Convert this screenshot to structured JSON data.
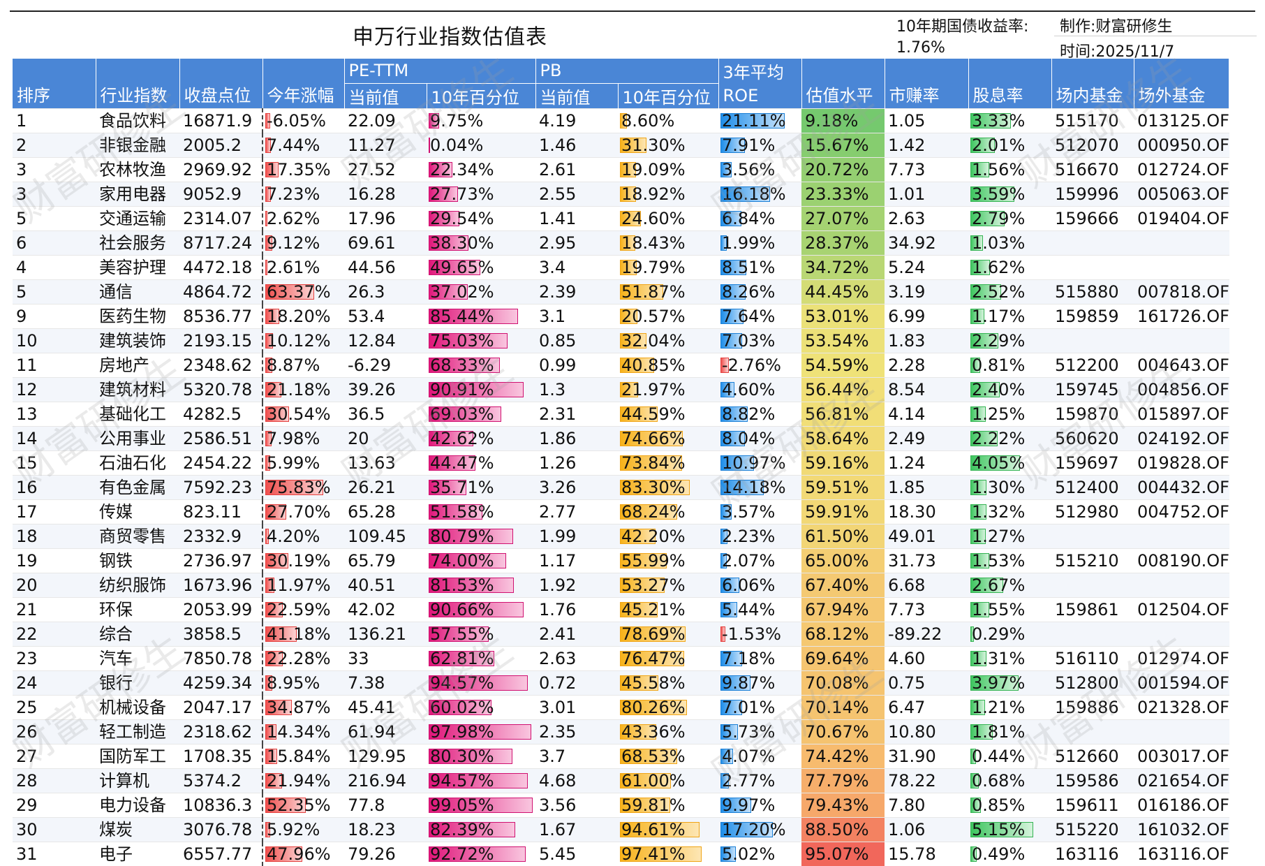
{
  "title": "申万行业指数估值表",
  "bond_label": "10年期国债收益率:",
  "bond_value": "1.76%",
  "author": "制作:财富研修生",
  "date": "时间:2025/11/7",
  "watermark": "财富研修生",
  "headers": {
    "rank": "排序",
    "industry": "行业指数",
    "close": "收盘点位",
    "ytd": "今年涨幅",
    "pe_group": "PE-TTM",
    "pe_cur": "当前值",
    "pe_pct": "10年百分位",
    "pb_group": "PB",
    "pb_cur": "当前值",
    "pb_pct": "10年百分位",
    "roe_top": "3年平均",
    "roe_bottom": "ROE",
    "valuation": "估值水平",
    "pe_ratio": "市赚率",
    "dividend": "股息率",
    "etf": "场内基金",
    "otc": "场外基金"
  },
  "rows": [
    {
      "rank": "1",
      "name": "食品饮料",
      "close": "16871.9",
      "ytd": "-6.05%",
      "pe": "22.09",
      "pe_pct": "9.75%",
      "pb": "4.19",
      "pb_pct": "8.60%",
      "roe": "21.11%",
      "val": "9.18%",
      "ratio": "1.05",
      "div": "3.33%",
      "etf": "515170",
      "otc": "013125.OF"
    },
    {
      "rank": "2",
      "name": "非银金融",
      "close": "2005.2",
      "ytd": "7.44%",
      "pe": "11.27",
      "pe_pct": "0.04%",
      "pb": "1.46",
      "pb_pct": "31.30%",
      "roe": "7.91%",
      "val": "15.67%",
      "ratio": "1.42",
      "div": "2.01%",
      "etf": "512070",
      "otc": "000950.OF"
    },
    {
      "rank": "3",
      "name": "农林牧渔",
      "close": "2969.92",
      "ytd": "17.35%",
      "pe": "27.52",
      "pe_pct": "22.34%",
      "pb": "2.61",
      "pb_pct": "19.09%",
      "roe": "3.56%",
      "val": "20.72%",
      "ratio": "7.73",
      "div": "1.56%",
      "etf": "516670",
      "otc": "012724.OF"
    },
    {
      "rank": "3",
      "name": "家用电器",
      "close": "9052.9",
      "ytd": "7.23%",
      "pe": "16.28",
      "pe_pct": "27.73%",
      "pb": "2.55",
      "pb_pct": "18.92%",
      "roe": "16.18%",
      "val": "23.33%",
      "ratio": "1.01",
      "div": "3.59%",
      "etf": "159996",
      "otc": "005063.OF"
    },
    {
      "rank": "5",
      "name": "交通运输",
      "close": "2314.07",
      "ytd": "2.62%",
      "pe": "17.96",
      "pe_pct": "29.54%",
      "pb": "1.41",
      "pb_pct": "24.60%",
      "roe": "6.84%",
      "val": "27.07%",
      "ratio": "2.63",
      "div": "2.79%",
      "etf": "159666",
      "otc": "019404.OF"
    },
    {
      "rank": "6",
      "name": "社会服务",
      "close": "8717.24",
      "ytd": "9.12%",
      "pe": "69.61",
      "pe_pct": "38.30%",
      "pb": "2.95",
      "pb_pct": "18.43%",
      "roe": "1.99%",
      "val": "28.37%",
      "ratio": "34.92",
      "div": "1.03%",
      "etf": "",
      "otc": ""
    },
    {
      "rank": "4",
      "name": "美容护理",
      "close": "4472.18",
      "ytd": "2.61%",
      "pe": "44.56",
      "pe_pct": "49.65%",
      "pb": "3.4",
      "pb_pct": "19.79%",
      "roe": "8.51%",
      "val": "34.72%",
      "ratio": "5.24",
      "div": "1.62%",
      "etf": "",
      "otc": ""
    },
    {
      "rank": "5",
      "name": "通信",
      "close": "4864.72",
      "ytd": "63.37%",
      "pe": "26.3",
      "pe_pct": "37.02%",
      "pb": "2.39",
      "pb_pct": "51.87%",
      "roe": "8.26%",
      "val": "44.45%",
      "ratio": "3.19",
      "div": "2.52%",
      "etf": "515880",
      "otc": "007818.OF"
    },
    {
      "rank": "9",
      "name": "医药生物",
      "close": "8536.77",
      "ytd": "18.20%",
      "pe": "53.4",
      "pe_pct": "85.44%",
      "pb": "3.1",
      "pb_pct": "20.57%",
      "roe": "7.64%",
      "val": "53.01%",
      "ratio": "6.99",
      "div": "1.17%",
      "etf": "159859",
      "otc": "161726.OF"
    },
    {
      "rank": "10",
      "name": "建筑装饰",
      "close": "2193.15",
      "ytd": "10.12%",
      "pe": "12.84",
      "pe_pct": "75.03%",
      "pb": "0.85",
      "pb_pct": "32.04%",
      "roe": "7.03%",
      "val": "53.54%",
      "ratio": "1.83",
      "div": "2.29%",
      "etf": "",
      "otc": ""
    },
    {
      "rank": "11",
      "name": "房地产",
      "close": "2348.62",
      "ytd": "8.87%",
      "pe": "-6.29",
      "pe_pct": "68.33%",
      "pb": "0.99",
      "pb_pct": "40.85%",
      "roe": "-2.76%",
      "val": "54.59%",
      "ratio": "2.28",
      "div": "0.81%",
      "etf": "512200",
      "otc": "004643.OF"
    },
    {
      "rank": "12",
      "name": "建筑材料",
      "close": "5320.78",
      "ytd": "21.18%",
      "pe": "39.26",
      "pe_pct": "90.91%",
      "pb": "1.3",
      "pb_pct": "21.97%",
      "roe": "4.60%",
      "val": "56.44%",
      "ratio": "8.54",
      "div": "2.40%",
      "etf": "159745",
      "otc": "004856.OF"
    },
    {
      "rank": "13",
      "name": "基础化工",
      "close": "4282.5",
      "ytd": "30.54%",
      "pe": "36.5",
      "pe_pct": "69.03%",
      "pb": "2.31",
      "pb_pct": "44.59%",
      "roe": "8.82%",
      "val": "56.81%",
      "ratio": "4.14",
      "div": "1.25%",
      "etf": "159870",
      "otc": "015897.OF"
    },
    {
      "rank": "14",
      "name": "公用事业",
      "close": "2586.51",
      "ytd": "7.98%",
      "pe": "20",
      "pe_pct": "42.62%",
      "pb": "1.86",
      "pb_pct": "74.66%",
      "roe": "8.04%",
      "val": "58.64%",
      "ratio": "2.49",
      "div": "2.22%",
      "etf": "560620",
      "otc": "024192.OF"
    },
    {
      "rank": "15",
      "name": "石油石化",
      "close": "2454.22",
      "ytd": "5.99%",
      "pe": "13.63",
      "pe_pct": "44.47%",
      "pb": "1.26",
      "pb_pct": "73.84%",
      "roe": "10.97%",
      "val": "59.16%",
      "ratio": "1.24",
      "div": "4.05%",
      "etf": "159697",
      "otc": "019828.OF"
    },
    {
      "rank": "16",
      "name": "有色金属",
      "close": "7592.23",
      "ytd": "75.83%",
      "pe": "26.21",
      "pe_pct": "35.71%",
      "pb": "3.26",
      "pb_pct": "83.30%",
      "roe": "14.18%",
      "val": "59.51%",
      "ratio": "1.85",
      "div": "1.30%",
      "etf": "512400",
      "otc": "004432.OF"
    },
    {
      "rank": "17",
      "name": "传媒",
      "close": "823.11",
      "ytd": "27.70%",
      "pe": "65.28",
      "pe_pct": "51.58%",
      "pb": "2.77",
      "pb_pct": "68.24%",
      "roe": "3.57%",
      "val": "59.91%",
      "ratio": "18.30",
      "div": "1.32%",
      "etf": "512980",
      "otc": "004752.OF"
    },
    {
      "rank": "18",
      "name": "商贸零售",
      "close": "2332.9",
      "ytd": "4.20%",
      "pe": "109.45",
      "pe_pct": "80.79%",
      "pb": "1.99",
      "pb_pct": "42.20%",
      "roe": "2.23%",
      "val": "61.50%",
      "ratio": "49.01",
      "div": "1.27%",
      "etf": "",
      "otc": ""
    },
    {
      "rank": "19",
      "name": "钢铁",
      "close": "2736.97",
      "ytd": "30.19%",
      "pe": "65.79",
      "pe_pct": "74.00%",
      "pb": "1.17",
      "pb_pct": "55.99%",
      "roe": "2.07%",
      "val": "65.00%",
      "ratio": "31.73",
      "div": "1.53%",
      "etf": "515210",
      "otc": "008190.OF"
    },
    {
      "rank": "20",
      "name": "纺织服饰",
      "close": "1673.96",
      "ytd": "11.97%",
      "pe": "40.51",
      "pe_pct": "81.53%",
      "pb": "1.92",
      "pb_pct": "53.27%",
      "roe": "6.06%",
      "val": "67.40%",
      "ratio": "6.68",
      "div": "2.67%",
      "etf": "",
      "otc": ""
    },
    {
      "rank": "21",
      "name": "环保",
      "close": "2053.99",
      "ytd": "22.59%",
      "pe": "42.02",
      "pe_pct": "90.66%",
      "pb": "1.76",
      "pb_pct": "45.21%",
      "roe": "5.44%",
      "val": "67.94%",
      "ratio": "7.73",
      "div": "1.55%",
      "etf": "159861",
      "otc": "012504.OF"
    },
    {
      "rank": "22",
      "name": "综合",
      "close": "3858.5",
      "ytd": "41.18%",
      "pe": "136.21",
      "pe_pct": "57.55%",
      "pb": "2.41",
      "pb_pct": "78.69%",
      "roe": "-1.53%",
      "val": "68.12%",
      "ratio": "-89.22",
      "div": "0.29%",
      "etf": "",
      "otc": ""
    },
    {
      "rank": "23",
      "name": "汽车",
      "close": "7850.78",
      "ytd": "22.28%",
      "pe": "33",
      "pe_pct": "62.81%",
      "pb": "2.63",
      "pb_pct": "76.47%",
      "roe": "7.18%",
      "val": "69.64%",
      "ratio": "4.60",
      "div": "1.31%",
      "etf": "516110",
      "otc": "012974.OF"
    },
    {
      "rank": "24",
      "name": "银行",
      "close": "4259.34",
      "ytd": "8.95%",
      "pe": "7.38",
      "pe_pct": "94.57%",
      "pb": "0.72",
      "pb_pct": "45.58%",
      "roe": "9.87%",
      "val": "70.08%",
      "ratio": "0.75",
      "div": "3.97%",
      "etf": "512800",
      "otc": "001594.OF"
    },
    {
      "rank": "25",
      "name": "机械设备",
      "close": "2047.17",
      "ytd": "34.87%",
      "pe": "45.41",
      "pe_pct": "60.02%",
      "pb": "3.01",
      "pb_pct": "80.26%",
      "roe": "7.01%",
      "val": "70.14%",
      "ratio": "6.47",
      "div": "1.21%",
      "etf": "159886",
      "otc": "021328.OF"
    },
    {
      "rank": "26",
      "name": "轻工制造",
      "close": "2318.62",
      "ytd": "14.34%",
      "pe": "61.94",
      "pe_pct": "97.98%",
      "pb": "2.35",
      "pb_pct": "43.36%",
      "roe": "5.73%",
      "val": "70.67%",
      "ratio": "10.80",
      "div": "1.81%",
      "etf": "",
      "otc": ""
    },
    {
      "rank": "27",
      "name": "国防军工",
      "close": "1708.35",
      "ytd": "15.84%",
      "pe": "129.95",
      "pe_pct": "80.30%",
      "pb": "3.7",
      "pb_pct": "68.53%",
      "roe": "4.07%",
      "val": "74.42%",
      "ratio": "31.90",
      "div": "0.44%",
      "etf": "512660",
      "otc": "003017.OF"
    },
    {
      "rank": "28",
      "name": "计算机",
      "close": "5374.2",
      "ytd": "21.94%",
      "pe": "216.94",
      "pe_pct": "94.57%",
      "pb": "4.68",
      "pb_pct": "61.00%",
      "roe": "2.77%",
      "val": "77.79%",
      "ratio": "78.22",
      "div": "0.68%",
      "etf": "159586",
      "otc": "021654.OF"
    },
    {
      "rank": "29",
      "name": "电力设备",
      "close": "10836.3",
      "ytd": "52.35%",
      "pe": "77.8",
      "pe_pct": "99.05%",
      "pb": "3.56",
      "pb_pct": "59.81%",
      "roe": "9.97%",
      "val": "79.43%",
      "ratio": "7.80",
      "div": "0.85%",
      "etf": "159611",
      "otc": "016186.OF"
    },
    {
      "rank": "30",
      "name": "煤炭",
      "close": "3076.78",
      "ytd": "5.92%",
      "pe": "18.23",
      "pe_pct": "82.39%",
      "pb": "1.67",
      "pb_pct": "94.61%",
      "roe": "17.20%",
      "val": "88.50%",
      "ratio": "1.06",
      "div": "5.15%",
      "etf": "515220",
      "otc": "161032.OF"
    },
    {
      "rank": "31",
      "name": "电子",
      "close": "6557.77",
      "ytd": "47.96%",
      "pe": "79.26",
      "pe_pct": "92.72%",
      "pb": "5.45",
      "pb_pct": "97.41%",
      "roe": "5.02%",
      "val": "95.07%",
      "ratio": "15.78",
      "div": "0.49%",
      "etf": "163116",
      "otc": "163116.OF"
    }
  ]
}
